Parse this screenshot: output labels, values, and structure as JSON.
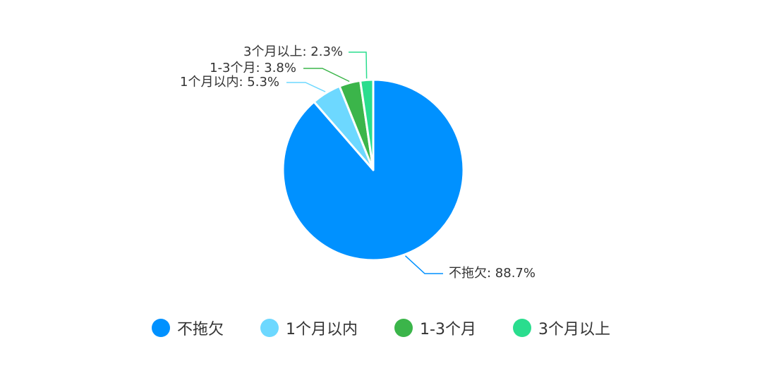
{
  "chart_data": {
    "type": "pie",
    "categories": [
      "不拖欠",
      "1个月以内",
      "1-3个月",
      "3个月以上"
    ],
    "values": [
      88.7,
      5.3,
      3.8,
      2.3
    ],
    "labels": [
      "不拖欠: 88.7%",
      "1个月以内: 5.3%",
      "1-3个月: 3.8%",
      "3个月以上: 2.3%"
    ],
    "colors": [
      "#0091FF",
      "#6DD8FF",
      "#3BB54A",
      "#2ADD8E"
    ],
    "legend_position": "bottom"
  }
}
